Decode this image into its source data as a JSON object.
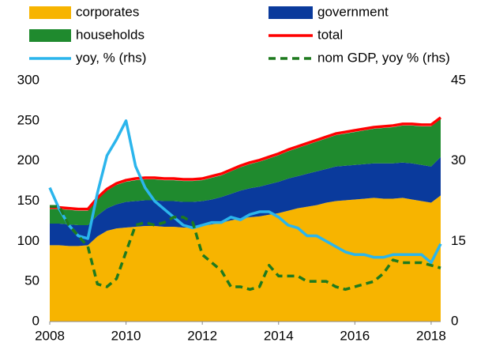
{
  "chart_data": {
    "type": "area",
    "x": [
      2008,
      2008.25,
      2008.5,
      2008.75,
      2009,
      2009.25,
      2009.5,
      2009.75,
      2010,
      2010.25,
      2010.5,
      2010.75,
      2011,
      2011.25,
      2011.5,
      2011.75,
      2012,
      2012.25,
      2012.5,
      2012.75,
      2013,
      2013.25,
      2013.5,
      2013.75,
      2014,
      2014.25,
      2014.5,
      2014.75,
      2015,
      2015.25,
      2015.5,
      2015.75,
      2016,
      2016.25,
      2016.5,
      2016.75,
      2017,
      2017.25,
      2017.5,
      2017.75,
      2018,
      2018.25
    ],
    "xlim": [
      2008,
      2018.25
    ],
    "xticks": [
      2008,
      2010,
      2012,
      2014,
      2016,
      2018
    ],
    "ylim": [
      0,
      300
    ],
    "yticks": [
      0,
      50,
      100,
      150,
      200,
      250,
      300
    ],
    "y2lim": [
      0,
      45
    ],
    "y2ticks": [
      0,
      15,
      30,
      45
    ],
    "series": [
      {
        "name": "corporates",
        "type": "area",
        "color": "#f7b400",
        "values": [
          95,
          95,
          94,
          94,
          95,
          106,
          113,
          116,
          117,
          118,
          119,
          119,
          118,
          118,
          117,
          117,
          119,
          121,
          123,
          126,
          128,
          130,
          131,
          133,
          135,
          138,
          141,
          143,
          145,
          148,
          150,
          151,
          152,
          153,
          154,
          153,
          153,
          154,
          152,
          150,
          148,
          157
        ]
      },
      {
        "name": "government",
        "type": "area",
        "color": "#0a3a9c",
        "values": [
          27,
          27,
          27,
          26,
          25,
          26,
          28,
          30,
          32,
          32,
          32,
          32,
          32,
          32,
          32,
          32,
          31,
          31,
          32,
          33,
          35,
          36,
          37,
          38,
          39,
          40,
          40,
          41,
          42,
          42,
          43,
          43,
          43,
          43,
          43,
          44,
          44,
          44,
          45,
          45,
          45,
          48
        ]
      },
      {
        "name": "households",
        "type": "area",
        "color": "#1f8a2e",
        "values": [
          18,
          18,
          18,
          18,
          18,
          20,
          22,
          24,
          25,
          26,
          26,
          26,
          26,
          26,
          26,
          26,
          26,
          27,
          27,
          28,
          29,
          30,
          31,
          32,
          33,
          34,
          35,
          36,
          37,
          38,
          39,
          40,
          41,
          42,
          43,
          44,
          45,
          46,
          47,
          48,
          50,
          47
        ]
      },
      {
        "name": "total",
        "type": "line",
        "color": "#ff0000",
        "values": [
          142,
          142,
          141,
          140,
          140,
          154,
          165,
          172,
          176,
          178,
          179,
          179,
          178,
          178,
          177,
          177,
          178,
          181,
          184,
          189,
          194,
          198,
          201,
          205,
          209,
          214,
          218,
          222,
          226,
          230,
          234,
          236,
          238,
          240,
          242,
          243,
          244,
          246,
          246,
          245,
          245,
          254
        ]
      },
      {
        "name": "yoy, % (rhs)",
        "type": "line",
        "axis": "y2",
        "color": "#2bb5ec",
        "values": [
          25,
          21,
          18,
          16,
          15.5,
          24,
          31,
          34,
          37.5,
          29,
          25,
          22.5,
          21,
          19.5,
          18,
          17.5,
          18,
          18.5,
          18.5,
          19.5,
          19,
          20,
          20.5,
          20.5,
          19.5,
          18,
          17.5,
          16,
          16,
          15,
          14,
          13,
          12.5,
          12.5,
          12,
          12,
          12.5,
          12.5,
          12.5,
          12.5,
          11,
          14.5
        ]
      },
      {
        "name": "nom GDP, yoy % (rhs)",
        "type": "line",
        "axis": "y2",
        "dashed": true,
        "color": "#1e7a1e",
        "values": [
          21.5,
          21.5,
          18,
          16,
          14,
          7,
          6.5,
          8,
          13,
          18,
          18.5,
          18,
          18.5,
          19.5,
          19.5,
          18.5,
          12.5,
          11,
          9.5,
          6.5,
          6.5,
          6,
          6.5,
          10.5,
          8.5,
          8.5,
          8.5,
          7.5,
          7.5,
          7.5,
          6.5,
          6,
          6.5,
          7,
          7.5,
          9,
          11.5,
          11,
          11,
          11,
          10.5,
          10
        ]
      }
    ]
  }
}
